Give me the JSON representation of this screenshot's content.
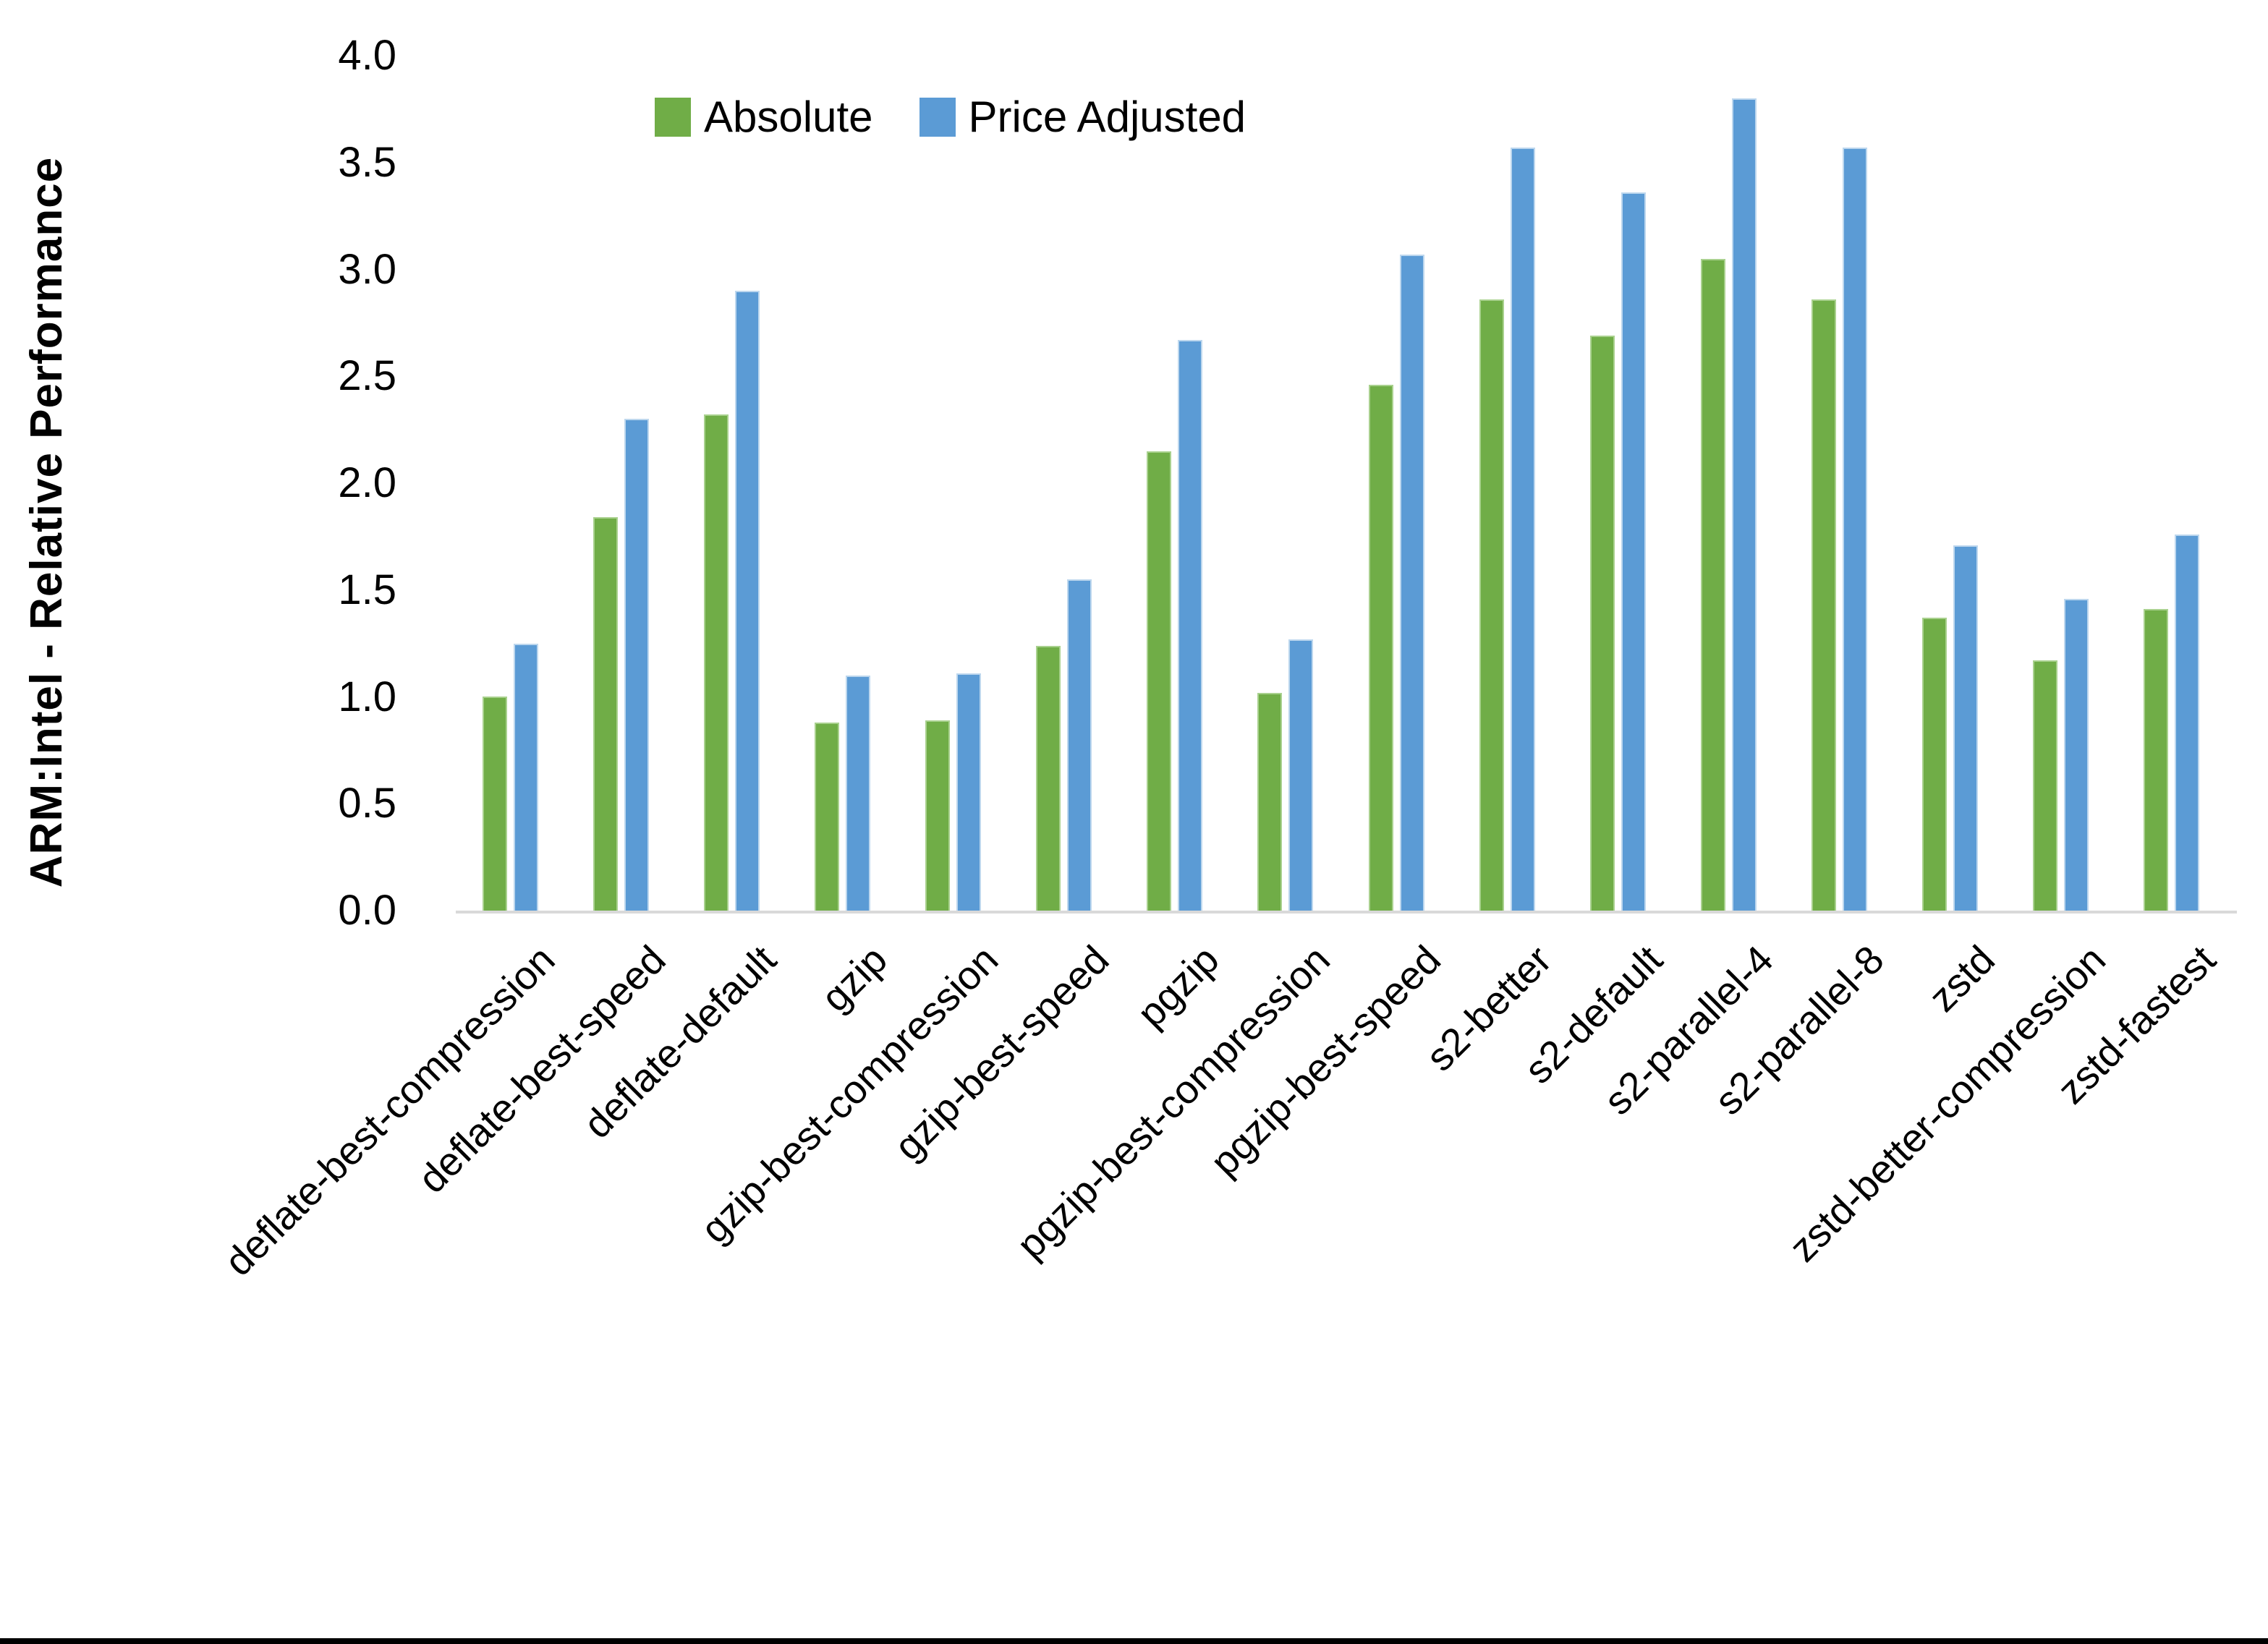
{
  "y_axis": {
    "title": "ARM:Intel - Relative Performance",
    "ticks": [
      {
        "label": "0.0",
        "value": 0.0
      },
      {
        "label": "0.5",
        "value": 0.5
      },
      {
        "label": "1.0",
        "value": 1.0
      },
      {
        "label": "1.5",
        "value": 1.5
      },
      {
        "label": "2.0",
        "value": 2.0
      },
      {
        "label": "2.5",
        "value": 2.5
      },
      {
        "label": "3.0",
        "value": 3.0
      },
      {
        "label": "3.5",
        "value": 3.5
      },
      {
        "label": "4.0",
        "value": 4.0
      }
    ]
  },
  "chart_data": {
    "type": "bar",
    "title": "",
    "xlabel": "",
    "ylabel": "ARM:Intel - Relative Performance",
    "ylim": [
      0,
      4.0
    ],
    "ytick_step": 0.5,
    "grid": false,
    "legend_position": "top-center",
    "categories": [
      "deflate-best-compression",
      "deflate-best-speed",
      "deflate-default",
      "gzip",
      "gzip-best-compression",
      "gzip-best-speed",
      "pgzip",
      "pgzip-best-compression",
      "pgzip-best-speed",
      "s2-better",
      "s2-default",
      "s2-parallel-4",
      "s2-parallel-8",
      "zstd",
      "zstd-better-compression",
      "zstd-fastest"
    ],
    "series": [
      {
        "name": "Absolute",
        "color": "#70AD47",
        "border_color": "#A9D18E",
        "values": [
          1.0,
          1.84,
          2.32,
          0.88,
          0.89,
          1.24,
          2.15,
          1.02,
          2.46,
          2.86,
          2.69,
          3.05,
          2.86,
          1.37,
          1.17,
          1.41
        ]
      },
      {
        "name": "Price Adjusted",
        "color": "#5B9BD5",
        "border_color": "#BDD7EE",
        "values": [
          1.25,
          2.3,
          2.9,
          1.1,
          1.11,
          1.55,
          2.67,
          1.27,
          3.07,
          3.57,
          3.36,
          3.8,
          3.57,
          1.71,
          1.46,
          1.76
        ]
      }
    ]
  }
}
